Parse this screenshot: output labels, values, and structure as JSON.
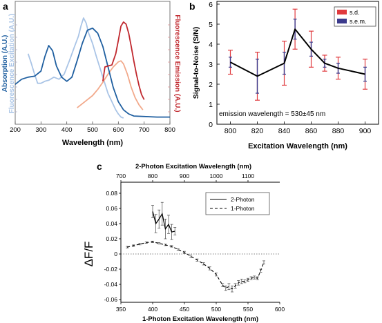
{
  "chart_data": [
    {
      "type": "line",
      "panel_label": "a",
      "xlabel": "Wavelength (nm)",
      "xlim": [
        200,
        800
      ],
      "x_ticks": [
        "200",
        "300",
        "400",
        "500",
        "600",
        "700",
        "800"
      ],
      "y_axis_left": {
        "label_1": "Absorption (A.U.)",
        "label_2": "Fluorescence Excitation (A.U.)",
        "color_1": "#1f5fa0",
        "color_2": "#a9c4e6"
      },
      "y_axis_right": {
        "label": "Fluorescence Emission (A.U.)",
        "color": "#c0272d"
      },
      "series": [
        {
          "role": "absorption",
          "color": "#1f5fa0",
          "points": [
            [
              200,
              0.35
            ],
            [
              225,
              0.4
            ],
            [
              250,
              0.42
            ],
            [
              275,
              0.43
            ],
            [
              300,
              0.48
            ],
            [
              315,
              0.62
            ],
            [
              330,
              0.73
            ],
            [
              345,
              0.68
            ],
            [
              360,
              0.53
            ],
            [
              380,
              0.42
            ],
            [
              400,
              0.38
            ],
            [
              420,
              0.42
            ],
            [
              440,
              0.58
            ],
            [
              460,
              0.75
            ],
            [
              480,
              0.88
            ],
            [
              500,
              0.9
            ],
            [
              520,
              0.85
            ],
            [
              540,
              0.72
            ],
            [
              560,
              0.52
            ],
            [
              580,
              0.32
            ],
            [
              600,
              0.18
            ],
            [
              620,
              0.1
            ],
            [
              640,
              0.06
            ],
            [
              660,
              0.04
            ],
            [
              700,
              0.035
            ],
            [
              750,
              0.03
            ],
            [
              800,
              0.03
            ]
          ]
        },
        {
          "role": "excitation",
          "color": "#a9c4e6",
          "points": [
            [
              250,
              0.65
            ],
            [
              262,
              0.56
            ],
            [
              275,
              0.45
            ],
            [
              287,
              0.36
            ],
            [
              300,
              0.36
            ],
            [
              315,
              0.38
            ],
            [
              330,
              0.39
            ],
            [
              350,
              0.42
            ],
            [
              370,
              0.4
            ],
            [
              390,
              0.45
            ],
            [
              410,
              0.58
            ],
            [
              430,
              0.72
            ],
            [
              445,
              0.82
            ],
            [
              455,
              0.92
            ],
            [
              465,
              1.0
            ],
            [
              475,
              0.95
            ],
            [
              485,
              0.85
            ],
            [
              500,
              0.75
            ],
            [
              515,
              0.62
            ],
            [
              530,
              0.5
            ],
            [
              545,
              0.38
            ],
            [
              560,
              0.26
            ],
            [
              575,
              0.18
            ],
            [
              590,
              0.1
            ],
            [
              600,
              0.06
            ],
            [
              610,
              0.03
            ],
            [
              620,
              0.02
            ]
          ]
        },
        {
          "role": "emission_light",
          "color": "#f2a98b",
          "points": [
            [
              440,
              0.12
            ],
            [
              460,
              0.16
            ],
            [
              480,
              0.2
            ],
            [
              500,
              0.24
            ],
            [
              520,
              0.3
            ],
            [
              540,
              0.37
            ],
            [
              560,
              0.45
            ],
            [
              580,
              0.52
            ],
            [
              600,
              0.57
            ],
            [
              610,
              0.58
            ],
            [
              620,
              0.55
            ],
            [
              635,
              0.45
            ],
            [
              650,
              0.32
            ],
            [
              665,
              0.22
            ],
            [
              680,
              0.15
            ],
            [
              695,
              0.1
            ]
          ]
        },
        {
          "role": "emission",
          "color": "#c0272d",
          "points": [
            [
              540,
              0.38
            ],
            [
              548,
              0.52
            ],
            [
              560,
              0.53
            ],
            [
              575,
              0.54
            ],
            [
              590,
              0.65
            ],
            [
              600,
              0.78
            ],
            [
              610,
              0.92
            ],
            [
              620,
              0.96
            ],
            [
              630,
              0.94
            ],
            [
              640,
              0.85
            ],
            [
              650,
              0.72
            ],
            [
              660,
              0.58
            ],
            [
              670,
              0.45
            ],
            [
              680,
              0.34
            ],
            [
              690,
              0.25
            ],
            [
              700,
              0.2
            ]
          ]
        }
      ]
    },
    {
      "type": "line",
      "panel_label": "b",
      "xlabel": "Excitation Wavelength (nm)",
      "ylabel": "Signal-to-Noise (S/N)",
      "xlim": [
        790,
        910
      ],
      "ylim": [
        0,
        6
      ],
      "x_ticks": [
        "800",
        "820",
        "840",
        "860",
        "880",
        "900"
      ],
      "y_ticks": [
        "0",
        "1",
        "2",
        "3",
        "4",
        "5",
        "6"
      ],
      "annotation": "emission wavelength = 530±45 nm",
      "legend": {
        "placement": "top-right",
        "entries": [
          {
            "label": "s.d.",
            "color": "#e03a3e"
          },
          {
            "label": "s.e.m.",
            "color": "#3b3a8c"
          }
        ]
      },
      "series": [
        {
          "x": [
            800,
            820,
            840,
            848,
            860,
            870,
            880,
            900
          ],
          "y": [
            3.1,
            2.4,
            3.05,
            4.75,
            3.75,
            3.05,
            2.8,
            2.5
          ],
          "sd": [
            0.6,
            1.2,
            1.1,
            1.0,
            0.9,
            0.4,
            0.55,
            0.75
          ],
          "sem": [
            0.25,
            0.85,
            0.55,
            0.5,
            0.35,
            0.2,
            0.25,
            0.35
          ]
        }
      ]
    },
    {
      "type": "line",
      "panel_label": "c",
      "xlabel": "1-Photon Excitation Wavelength (nm)",
      "xlabel_top": "2-Photon Excitation Wavelength (nm)",
      "ylabel": "ΔF/F",
      "xlim": [
        350,
        600
      ],
      "xlim_top": [
        700,
        1200
      ],
      "ylim": [
        -0.06,
        0.08
      ],
      "x_ticks": [
        "350",
        "400",
        "450",
        "500",
        "550",
        "600"
      ],
      "x_ticks_top": [
        "700",
        "800",
        "900",
        "1000",
        "1100"
      ],
      "y_ticks": [
        "0.08",
        "0.06",
        "0.04",
        "0.02",
        "0",
        "-0.02",
        "-0.04",
        "-0.06"
      ],
      "legend": {
        "placement": "top-right",
        "entries": [
          {
            "label": "2-Photon",
            "style": "solid"
          },
          {
            "label": "1-Photon",
            "style": "dashed"
          }
        ]
      },
      "series": [
        {
          "name": "2-Photon",
          "style": "solid",
          "x_top": [
            800,
            810,
            820,
            830,
            840,
            850,
            860,
            870
          ],
          "y": [
            0.056,
            0.04,
            0.046,
            0.053,
            0.033,
            0.039,
            0.029,
            0.03
          ],
          "err": [
            0.008,
            0.012,
            0.012,
            0.015,
            0.013,
            0.012,
            0.01,
            0.005
          ]
        },
        {
          "name": "1-Photon",
          "style": "dashed",
          "x": [
            360,
            370,
            380,
            390,
            400,
            410,
            420,
            430,
            440,
            450,
            460,
            470,
            480,
            490,
            500,
            510,
            515,
            520,
            525,
            530,
            535,
            540,
            545,
            550,
            555,
            560,
            565,
            570,
            575
          ],
          "y": [
            0.009,
            0.011,
            0.013,
            0.015,
            0.016,
            0.014,
            0.012,
            0.01,
            0.006,
            0.002,
            -0.003,
            -0.008,
            -0.013,
            -0.019,
            -0.027,
            -0.041,
            -0.045,
            -0.043,
            -0.046,
            -0.042,
            -0.038,
            -0.036,
            -0.036,
            -0.034,
            -0.032,
            -0.031,
            -0.032,
            -0.022,
            -0.011
          ],
          "err": [
            0.001,
            0.001,
            0.001,
            0.001,
            0.001,
            0.001,
            0.001,
            0.001,
            0.001,
            0.0015,
            0.0015,
            0.0015,
            0.0015,
            0.002,
            0.002,
            0.002,
            0.003,
            0.004,
            0.004,
            0.003,
            0.003,
            0.003,
            0.002,
            0.002,
            0.002,
            0.002,
            0.002,
            0.002,
            0.002
          ]
        }
      ],
      "zero_line": {
        "y": 0,
        "style": "dotted"
      }
    }
  ]
}
